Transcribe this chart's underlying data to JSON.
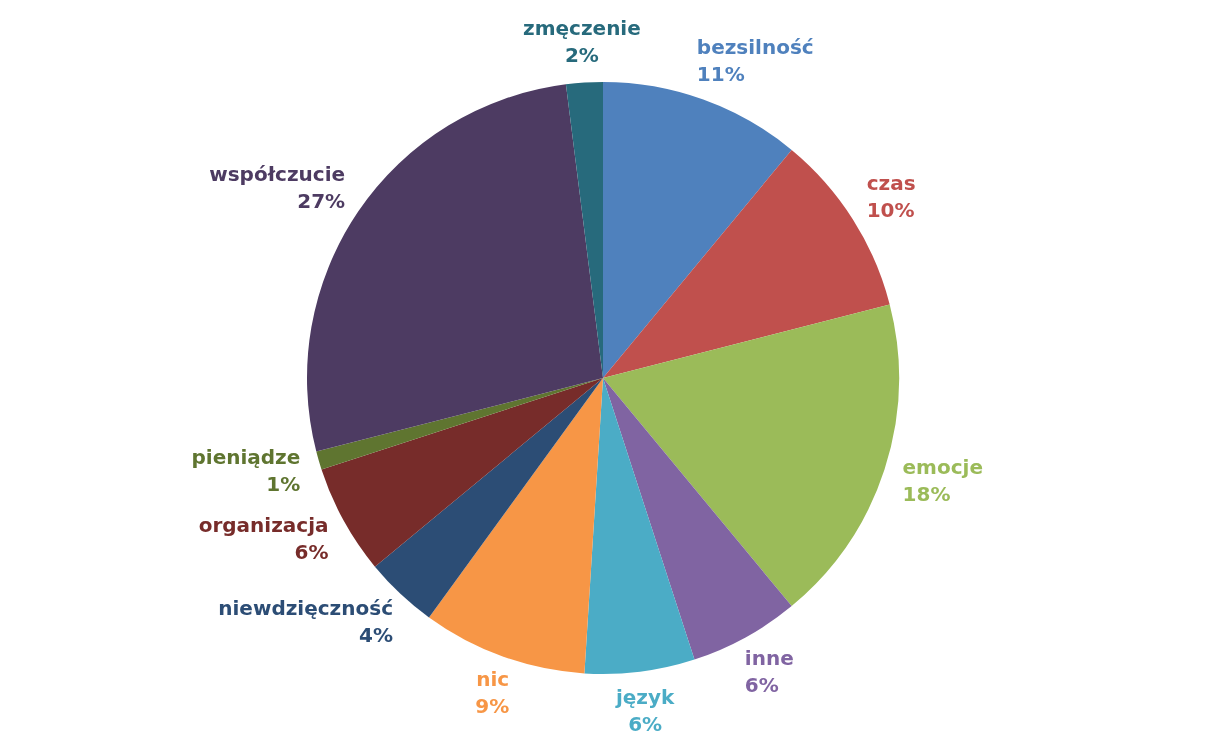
{
  "chart_data": {
    "type": "pie",
    "categories": [
      "bezsilność",
      "czas",
      "emocje",
      "inne",
      "język",
      "nic",
      "niewdzięczność",
      "organizacja",
      "pieniądze",
      "współczucie",
      "zmęczenie"
    ],
    "values": [
      11,
      10,
      18,
      6,
      6,
      9,
      4,
      6,
      1,
      27,
      2
    ],
    "colors": [
      "#4f81bd",
      "#c0504d",
      "#9bbb59",
      "#8064a2",
      "#4bacc6",
      "#f79646",
      "#2c4d75",
      "#772c2a",
      "#5f7530",
      "#4d3b62",
      "#276a7c"
    ],
    "value_labels": [
      "11%",
      "10%",
      "18%",
      "6%",
      "6%",
      "9%",
      "4%",
      "6%",
      "1%",
      "27%",
      "2%"
    ],
    "legend": false
  }
}
